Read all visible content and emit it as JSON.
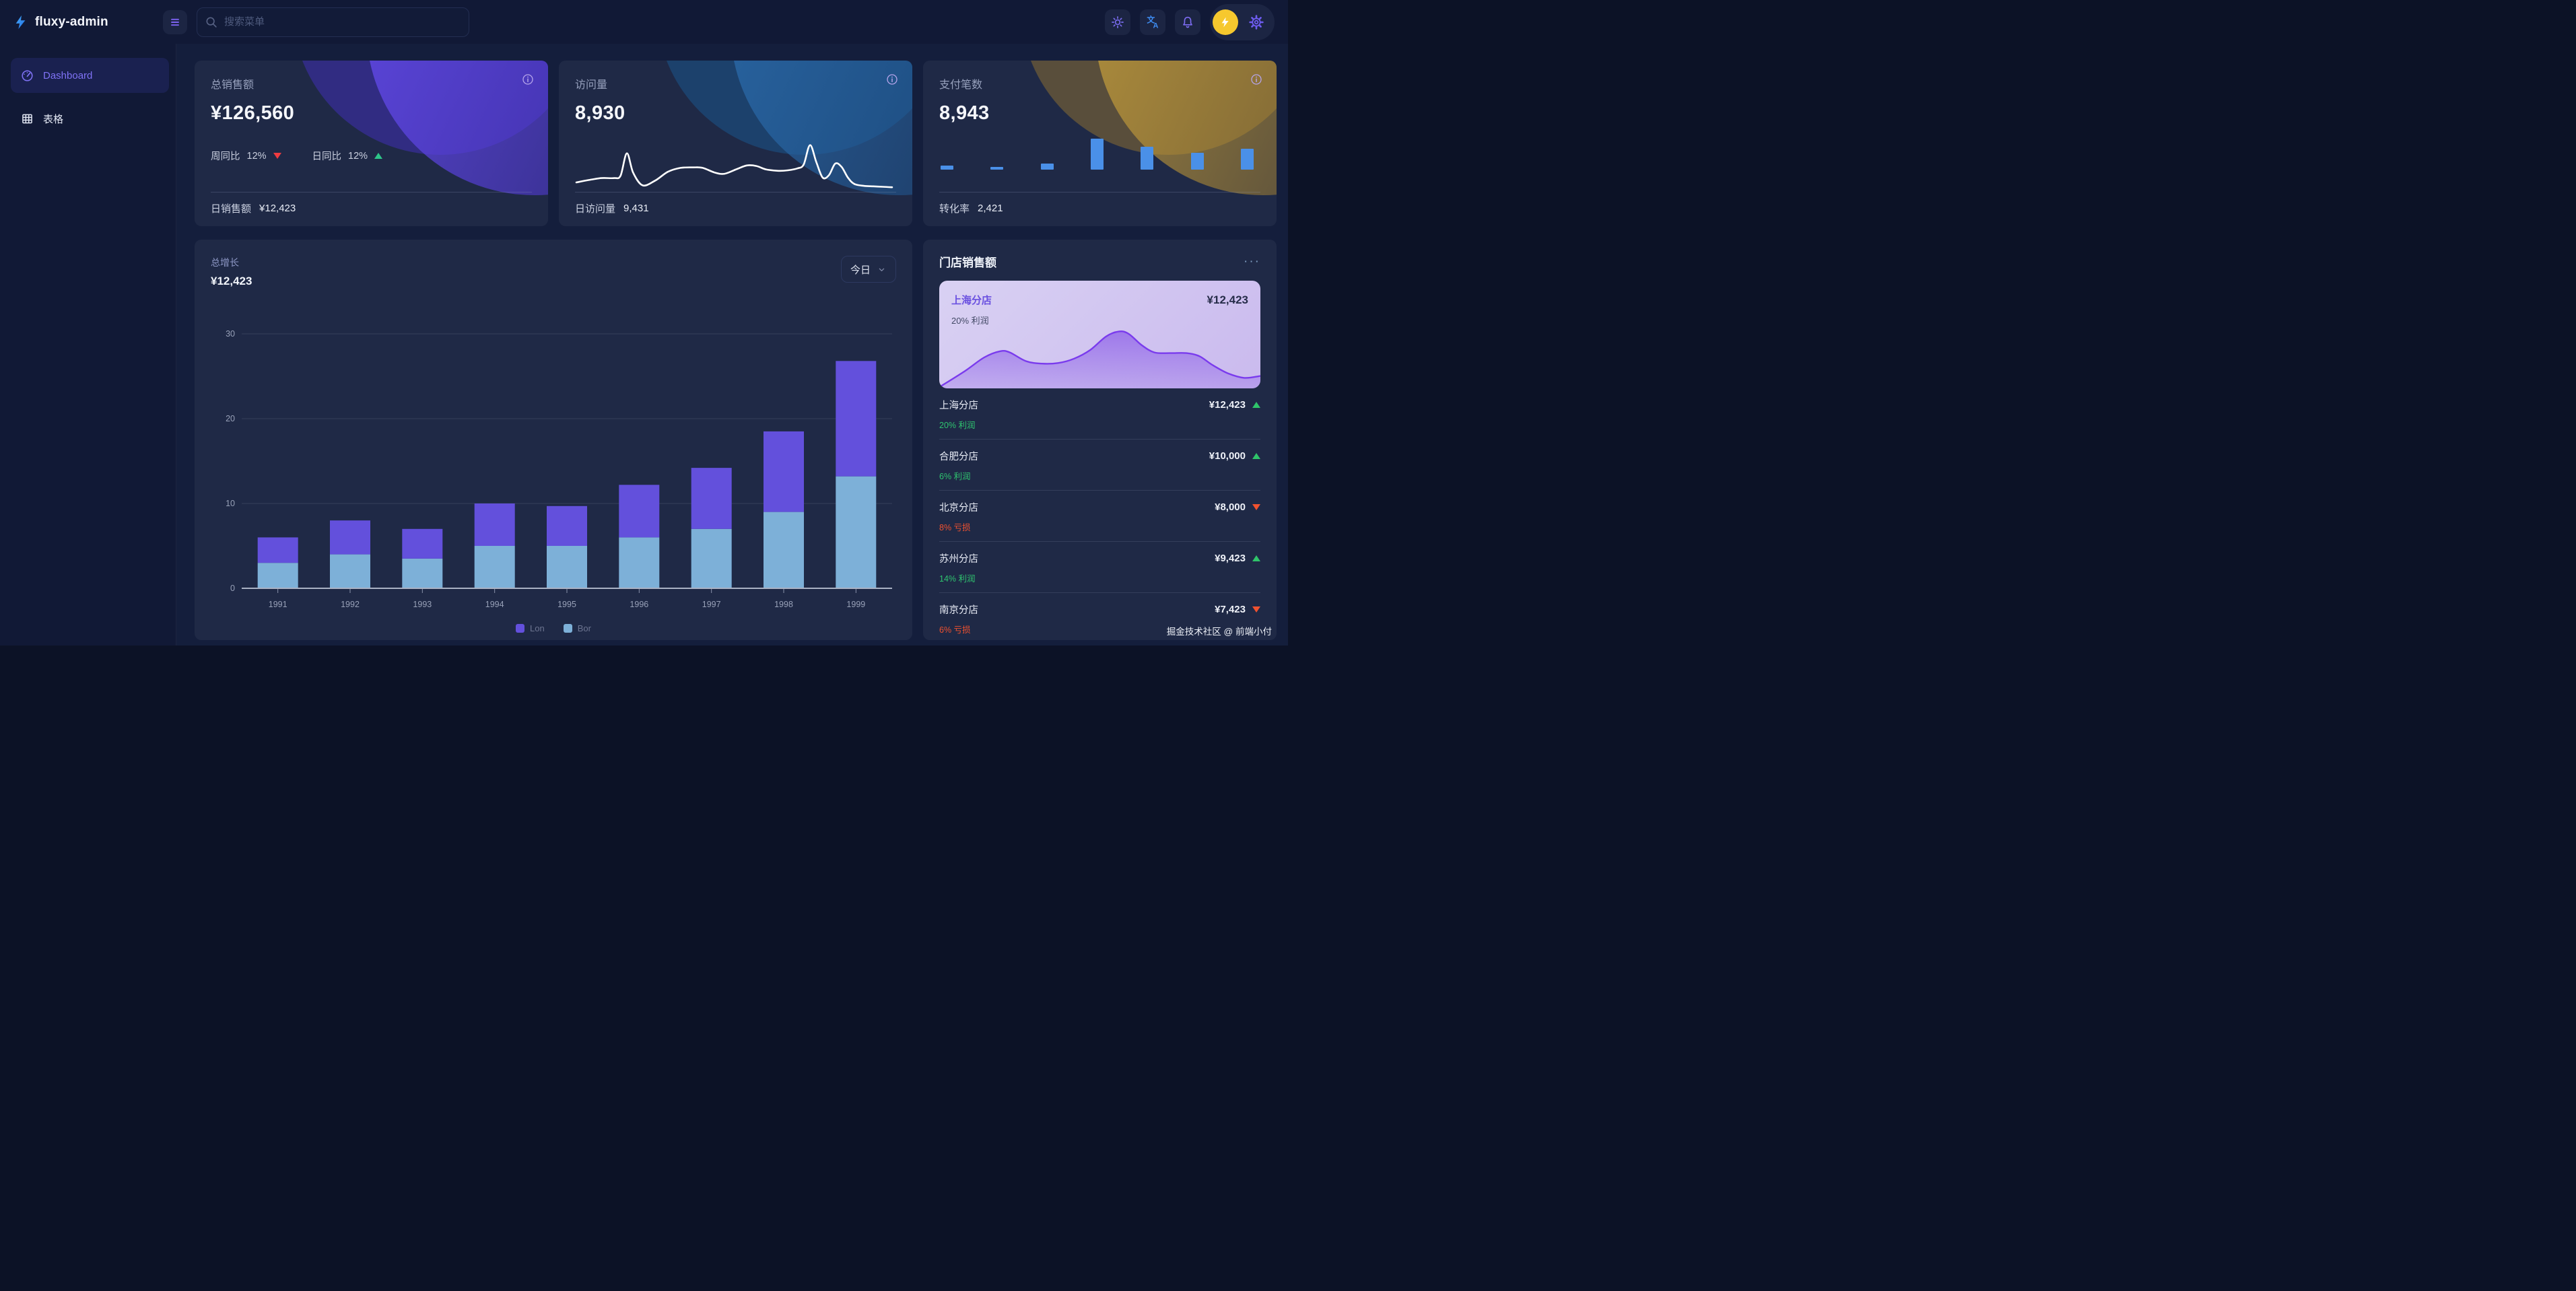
{
  "app": {
    "name": "fluxy-admin"
  },
  "navbar": {
    "menu_icon": "hamburger",
    "search": {
      "placeholder": "搜索菜单",
      "icon": "magnifier"
    },
    "actions": {
      "theme_icon": "sun",
      "language_icon": "translate",
      "notifications_icon": "bell",
      "avatar_icon": "lightning-bolt",
      "settings_icon": "gear"
    }
  },
  "sidebar": {
    "items": [
      {
        "label": "Dashboard",
        "icon": "gauge",
        "active": true
      },
      {
        "label": "表格",
        "icon": "table-grid",
        "active": false
      }
    ]
  },
  "stat_cards": [
    {
      "title": "总销售额",
      "value": "¥126,560",
      "info_icon": "info-circle",
      "accent": "purple",
      "trends": [
        {
          "label": "周同比",
          "value": "12%",
          "direction": "down"
        },
        {
          "label": "日同比",
          "value": "12%",
          "direction": "up"
        }
      ],
      "footer": {
        "label": "日销售额",
        "value": "¥12,423"
      }
    },
    {
      "title": "访问量",
      "value": "8,930",
      "info_icon": "info-circle",
      "accent": "blue",
      "footer": {
        "label": "日访问量",
        "value": "9,431"
      }
    },
    {
      "title": "支付笔数",
      "value": "8,943",
      "info_icon": "info-circle",
      "accent": "gold",
      "footer": {
        "label": "转化率",
        "value": "2,421"
      }
    }
  ],
  "growth_card": {
    "title": "总增长",
    "value": "¥12,423",
    "period_selector": {
      "value": "今日",
      "icon": "chevron-down"
    }
  },
  "store_panel": {
    "title": "门店销售额",
    "menu_icon": "ellipsis",
    "menu_label": "···",
    "highlight": {
      "name": "上海分店",
      "value": "¥12,423",
      "note": "20% 利润"
    },
    "stores": [
      {
        "name": "上海分店",
        "value": "¥12,423",
        "trend": "up",
        "note": "20% 利润",
        "status": "profit"
      },
      {
        "name": "合肥分店",
        "value": "¥10,000",
        "trend": "up",
        "note": "6% 利润",
        "status": "profit"
      },
      {
        "name": "北京分店",
        "value": "¥8,000",
        "trend": "down",
        "note": "8% 亏损",
        "status": "loss"
      },
      {
        "name": "苏州分店",
        "value": "¥9,423",
        "trend": "up",
        "note": "14% 利润",
        "status": "profit"
      },
      {
        "name": "南京分店",
        "value": "¥7,423",
        "trend": "down",
        "note": "6% 亏损",
        "status": "loss"
      }
    ]
  },
  "footer": {
    "credit": "掘金技术社区 @ 前端小付"
  },
  "colors": {
    "accent_purple": "#6552e0",
    "bar_purple": "#6350dc",
    "bar_lightblue": "#7db0d8",
    "mini_bar_blue": "#4a90e8",
    "up_green": "#2ec488",
    "down_red": "#ee3b40",
    "loss_orange": "#f0512f",
    "profit_green": "#2fc46f",
    "avatar_yellow": "#f6c82e"
  },
  "chart_data": [
    {
      "id": "visits_sparkline",
      "type": "line",
      "stroke": "#ffffff",
      "grid": false,
      "points": [
        [
          0,
          18
        ],
        [
          4,
          23
        ],
        [
          8,
          27
        ],
        [
          12,
          27
        ],
        [
          14,
          32
        ],
        [
          16,
          78
        ],
        [
          18,
          38
        ],
        [
          21,
          12
        ],
        [
          25,
          22
        ],
        [
          29,
          40
        ],
        [
          33,
          48
        ],
        [
          37,
          49
        ],
        [
          40,
          48
        ],
        [
          44,
          38
        ],
        [
          47,
          36
        ],
        [
          51,
          46
        ],
        [
          54,
          53
        ],
        [
          57,
          52
        ],
        [
          60,
          45
        ],
        [
          64,
          42
        ],
        [
          67,
          43
        ],
        [
          70,
          47
        ],
        [
          72,
          55
        ],
        [
          74,
          95
        ],
        [
          76,
          60
        ],
        [
          78,
          28
        ],
        [
          80,
          33
        ],
        [
          82,
          57
        ],
        [
          84,
          50
        ],
        [
          86,
          28
        ],
        [
          88,
          15
        ],
        [
          91,
          11
        ],
        [
          94,
          10
        ],
        [
          97,
          9
        ],
        [
          100,
          8
        ]
      ]
    },
    {
      "id": "payments_bars",
      "type": "bar",
      "color": "#4a90e8",
      "values": [
        12,
        9,
        19,
        92,
        69,
        51,
        62
      ]
    },
    {
      "id": "growth_stacked",
      "type": "bar",
      "stacked": true,
      "title": "总增长",
      "categories": [
        "1991",
        "1992",
        "1993",
        "1994",
        "1995",
        "1996",
        "1997",
        "1998",
        "1999"
      ],
      "series": [
        {
          "name": "Lon",
          "color": "#6350dc",
          "stack_position": "top",
          "values": [
            3,
            4,
            3.5,
            5,
            4.7,
            6.2,
            7.2,
            9.5,
            13.6
          ]
        },
        {
          "name": "Bor",
          "color": "#7db0d8",
          "stack_position": "bottom",
          "values": [
            3,
            4,
            3.5,
            5,
            5,
            6,
            7,
            9,
            13.2
          ]
        }
      ],
      "ylim": [
        0,
        30
      ],
      "yticks": [
        0,
        10,
        20,
        30
      ],
      "grid": true,
      "legend_position": "bottom"
    },
    {
      "id": "store_area",
      "type": "area",
      "line_color": "#7a3bed",
      "fill_from": "rgba(124,70,230,0.6)",
      "fill_to": "rgba(124,70,230,0.22)",
      "points": [
        [
          0,
          98
        ],
        [
          8,
          72
        ],
        [
          14,
          50
        ],
        [
          19,
          40
        ],
        [
          22,
          42
        ],
        [
          27,
          56
        ],
        [
          32,
          60
        ],
        [
          37,
          59
        ],
        [
          42,
          52
        ],
        [
          47,
          38
        ],
        [
          52,
          16
        ],
        [
          56,
          8
        ],
        [
          59,
          12
        ],
        [
          63,
          30
        ],
        [
          67,
          42
        ],
        [
          72,
          43
        ],
        [
          77,
          43
        ],
        [
          81,
          48
        ],
        [
          85,
          62
        ],
        [
          90,
          76
        ],
        [
          95,
          83
        ],
        [
          100,
          80
        ]
      ]
    }
  ]
}
